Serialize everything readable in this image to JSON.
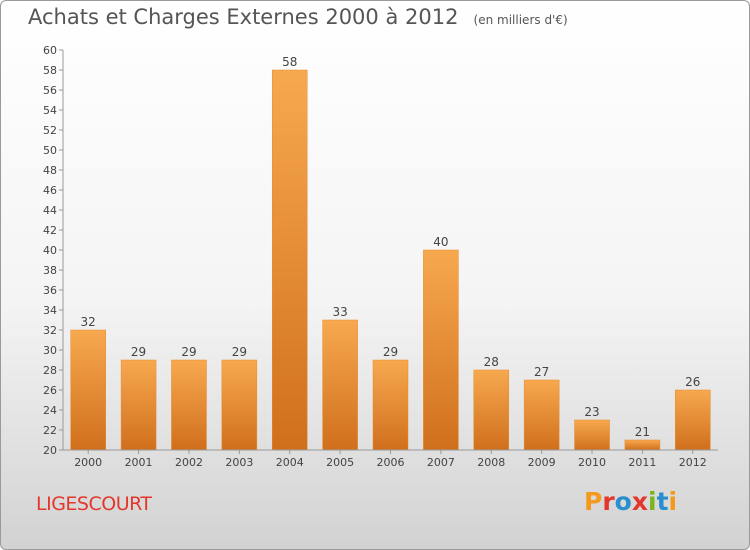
{
  "header": {
    "title": "Achats et Charges Externes 2000 à 2012",
    "subtitle": "(en milliers d'€)"
  },
  "footer": {
    "place": "LIGESCOURT",
    "logo_text": "Proxiti",
    "logo_colors": [
      "#f39a1d",
      "#e4372c",
      "#2a8fcf",
      "#e4372c",
      "#7ab51d",
      "#2a8fcf",
      "#f39a1d"
    ]
  },
  "chart_data": {
    "type": "bar",
    "title": "Achats et Charges Externes 2000 à 2012",
    "subtitle": "(en milliers d'€)",
    "xlabel": "",
    "ylabel": "",
    "categories": [
      "2000",
      "2001",
      "2002",
      "2003",
      "2004",
      "2005",
      "2006",
      "2007",
      "2008",
      "2009",
      "2010",
      "2011",
      "2012"
    ],
    "values": [
      32,
      29,
      29,
      29,
      58,
      33,
      29,
      40,
      28,
      27,
      23,
      21,
      26
    ],
    "ylim": [
      20,
      60
    ],
    "ytick_step": 2,
    "grid": false,
    "legend": "none",
    "bar_color_top": "#f7a94f",
    "bar_color_bottom": "#d06f1c"
  }
}
